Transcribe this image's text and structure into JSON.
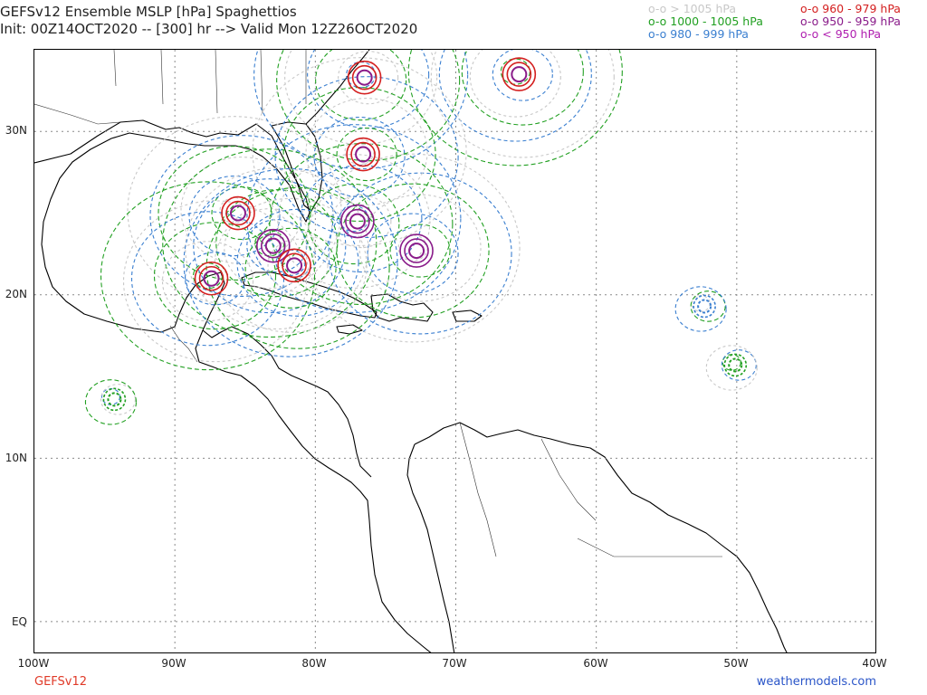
{
  "header": {
    "title_line1": "GEFSv12 Ensemble MSLP [hPa] Spaghettios",
    "title_line2": "Init: 00Z14OCT2020 -- [300] hr --> Valid Mon 12Z26OCT2020"
  },
  "legend": {
    "items": [
      {
        "label": "o-o > 1005 hPa",
        "color": "#c8c8c8"
      },
      {
        "label": "o-o 1000 - 1005 hPa",
        "color": "#22a022"
      },
      {
        "label": "o-o 980 - 999 hPa",
        "color": "#3a7fd0"
      },
      {
        "label": "o-o 960 - 979 hPa",
        "color": "#d42020"
      },
      {
        "label": "o-o 950 - 959 hPa",
        "color": "#8a1c8a"
      },
      {
        "label": "o-o < 950 hPa",
        "color": "#b020b0"
      }
    ]
  },
  "axes": {
    "lat_labels": [
      "30N",
      "20N",
      "10N",
      "EQ"
    ],
    "lon_labels": [
      "100W",
      "90W",
      "80W",
      "70W",
      "60W",
      "50W",
      "40W"
    ]
  },
  "map": {
    "domain_lon": [
      -100,
      -40
    ],
    "domain_lat": [
      -2,
      35
    ],
    "grid": true,
    "gridline_lats": [
      30,
      20,
      10,
      0
    ],
    "gridline_lons": [
      -90,
      -80,
      -70,
      -60,
      -50
    ],
    "lows": [
      {
        "lon": -85.5,
        "lat": 25.0,
        "category": "960-979"
      },
      {
        "lon": -83.0,
        "lat": 23.0,
        "category": "950-959"
      },
      {
        "lon": -77.0,
        "lat": 24.5,
        "category": "950-959"
      },
      {
        "lon": -72.8,
        "lat": 22.7,
        "category": "950-959"
      },
      {
        "lon": -65.5,
        "lat": 33.5,
        "category": "960-979"
      },
      {
        "lon": -76.5,
        "lat": 33.3,
        "category": "960-979"
      },
      {
        "lon": -76.6,
        "lat": 28.6,
        "category": "960-979"
      },
      {
        "lon": -87.4,
        "lat": 21.0,
        "category": "960-979"
      },
      {
        "lon": -81.5,
        "lat": 21.8,
        "category": "960-979"
      },
      {
        "lon": -52.3,
        "lat": 19.3,
        "category": "980-999"
      },
      {
        "lon": -50.1,
        "lat": 15.7,
        "category": "1000-1005"
      },
      {
        "lon": -94.3,
        "lat": 13.6,
        "category": "1000-1005"
      }
    ]
  },
  "footer": {
    "left": "GEFSv12",
    "right": "weathermodels.com"
  }
}
